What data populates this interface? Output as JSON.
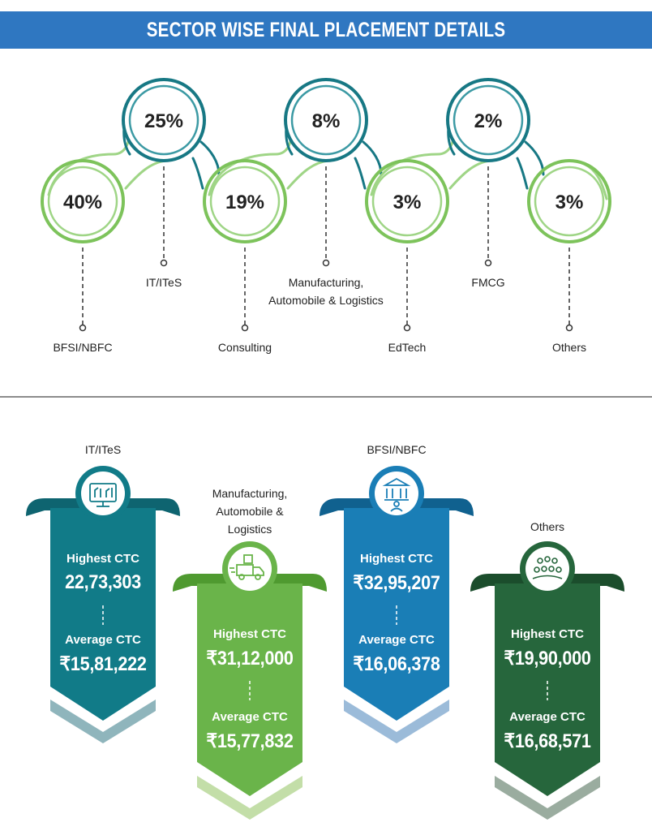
{
  "title": "SECTOR WISE FINAL PLACEMENT DETAILS",
  "sectors": [
    {
      "name": "BFSI/NBFC",
      "percent": "40%"
    },
    {
      "name": "IT/ITeS",
      "percent": "25%"
    },
    {
      "name": "Consulting",
      "percent": "19%"
    },
    {
      "name": "Manufacturing,\nAutomobile & Logistics",
      "percent": "8%"
    },
    {
      "name": "EdTech",
      "percent": "3%"
    },
    {
      "name": "FMCG",
      "percent": "2%"
    },
    {
      "name": "Others",
      "percent": "3%"
    }
  ],
  "ctc_cards": [
    {
      "sector": "IT/ITeS",
      "highest_label": "Highest CTC",
      "highest": "22,73,303",
      "average_label": "Average CTC",
      "average": "₹15,81,222",
      "icon": "monitor-circuit-icon",
      "color": "#117b88"
    },
    {
      "sector": "Manufacturing,\nAutomobile &\nLogistics",
      "highest_label": "Highest CTC",
      "highest": "₹31,12,000",
      "average_label": "Average CTC",
      "average": "₹15,77,832",
      "icon": "delivery-truck-icon",
      "color": "#6ab44a"
    },
    {
      "sector": "BFSI/NBFC",
      "highest_label": "Highest CTC",
      "highest": "₹32,95,207",
      "average_label": "Average CTC",
      "average": "₹16,06,378",
      "icon": "bank-icon",
      "color": "#1a7eb6"
    },
    {
      "sector": "Others",
      "highest_label": "Highest CTC",
      "highest": "₹19,90,000",
      "average_label": "Average CTC",
      "average": "₹16,68,571",
      "icon": "people-group-icon",
      "color": "#26663c"
    }
  ],
  "colors": {
    "banner": "#2f77c1",
    "teal": "#117b88",
    "green_ring": "#7dc35b",
    "dark_teal_ring": "#177884"
  }
}
